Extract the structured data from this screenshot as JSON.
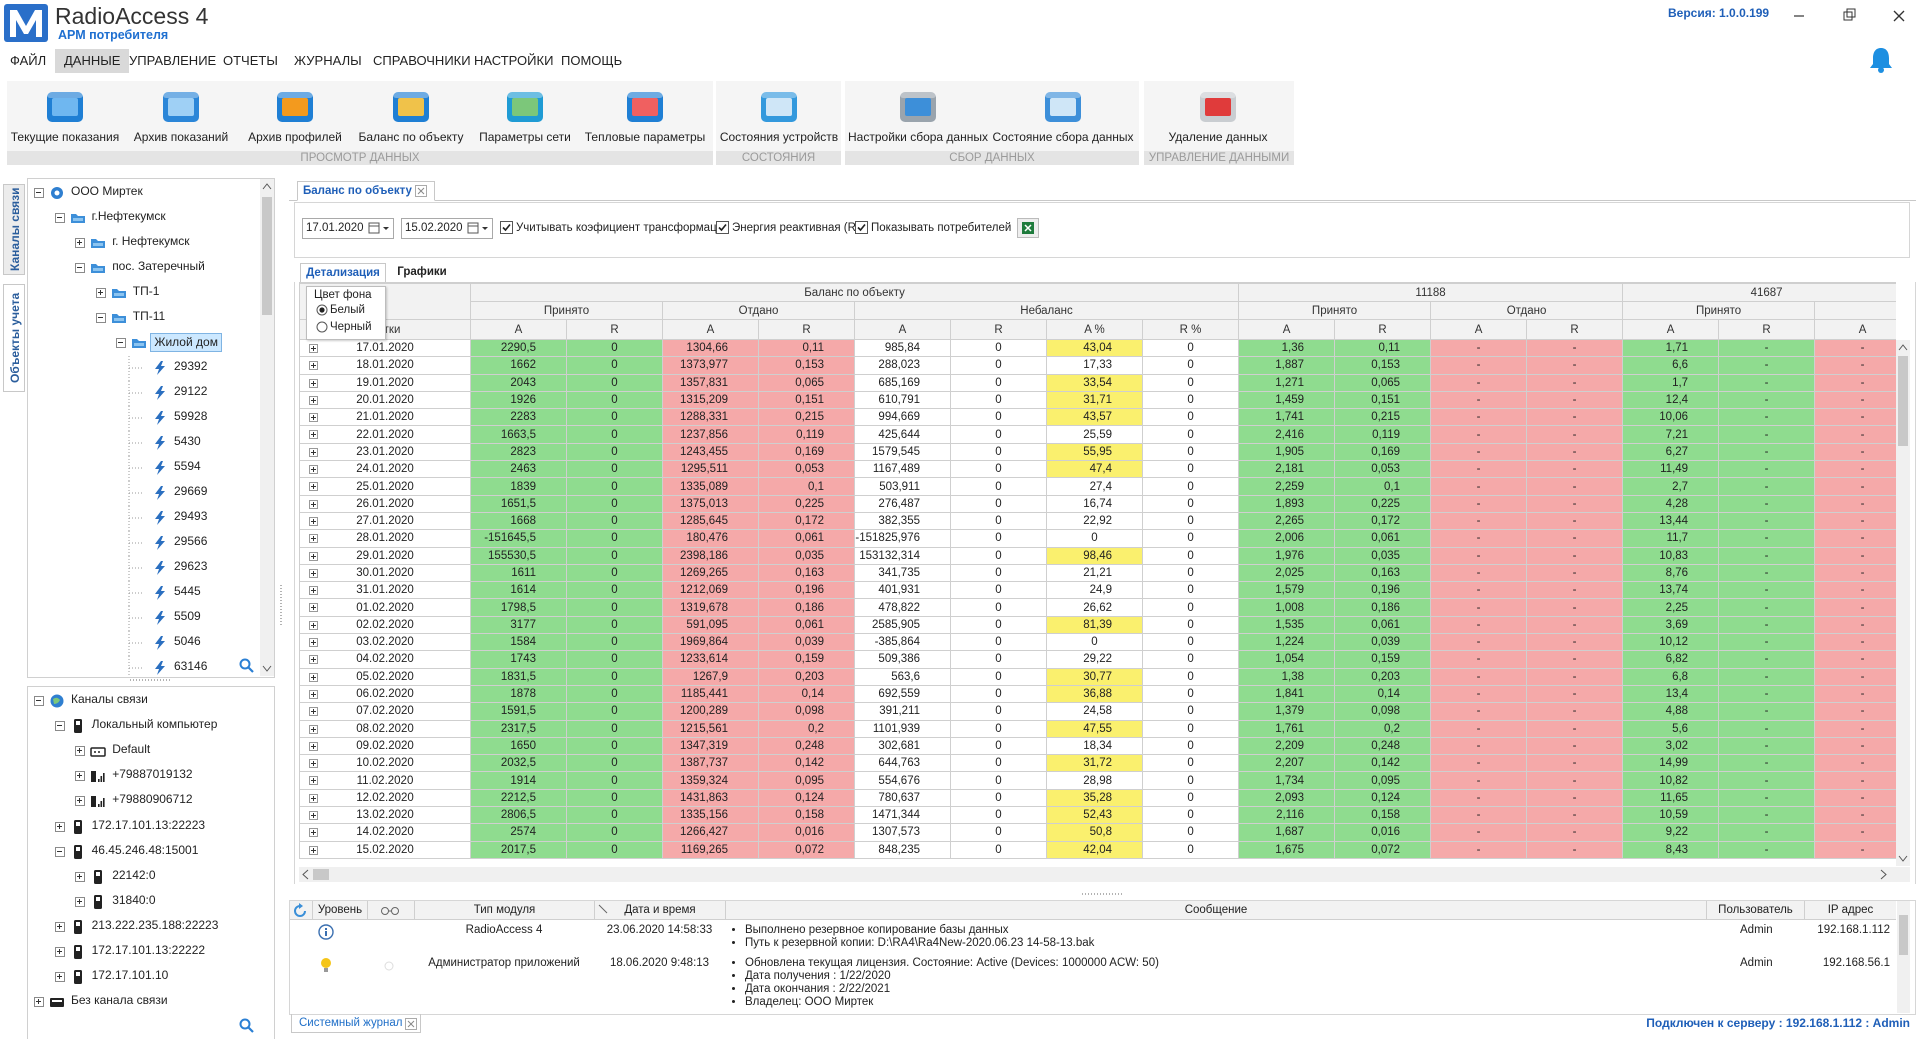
{
  "header": {
    "app_name": "RadioAccess 4",
    "subtitle": "АРМ потребителя",
    "version": "Версия: 1.0.0.199"
  },
  "menu": {
    "items": [
      "ФАЙЛ",
      "ДАННЫЕ",
      "УПРАВЛЕНИЕ",
      "ОТЧЕТЫ",
      "ЖУРНАЛЫ",
      "СПРАВОЧНИКИ",
      "НАСТРОЙКИ",
      "ПОМОЩЬ"
    ],
    "active_index": 1
  },
  "ribbon": {
    "groups": [
      {
        "label": "ПРОСМОТР ДАННЫХ",
        "buttons": [
          "Текущие показания",
          "Архив показаний",
          "Архив профилей",
          "Баланс по объекту",
          "Параметры сети",
          "Тепловые параметры"
        ]
      },
      {
        "label": "СОСТОЯНИЯ",
        "buttons": [
          "Состояния устройств"
        ]
      },
      {
        "label": "СБОР ДАННЫХ",
        "buttons": [
          "Настройки сбора данных",
          "Состояние сбора данных"
        ]
      },
      {
        "label": "УПРАВЛЕНИЕ ДАННЫМИ",
        "buttons": [
          "Удаление данных"
        ]
      }
    ]
  },
  "side_tabs": {
    "items": [
      "Каналы связи",
      "Объекты учета"
    ],
    "active_index": 1
  },
  "objects_tree": [
    {
      "label": "ООО Миртек",
      "level": 0,
      "expander": "minus",
      "icon": "org"
    },
    {
      "label": "г.Нефтекумск",
      "level": 1,
      "expander": "minus",
      "icon": "folder"
    },
    {
      "label": "г. Нефтекумск",
      "level": 2,
      "expander": "plus",
      "icon": "folder"
    },
    {
      "label": "пос. Затеречный",
      "level": 2,
      "expander": "minus",
      "icon": "folder"
    },
    {
      "label": "ТП-1",
      "level": 3,
      "expander": "plus",
      "icon": "folder"
    },
    {
      "label": "ТП-11",
      "level": 3,
      "expander": "minus",
      "icon": "folder"
    },
    {
      "label": "Жилой дом",
      "level": 4,
      "expander": "minus",
      "icon": "folder",
      "selected": true
    },
    {
      "label": "29392",
      "level": 5,
      "icon": "meter"
    },
    {
      "label": "29122",
      "level": 5,
      "icon": "meter"
    },
    {
      "label": "59928",
      "level": 5,
      "icon": "meter"
    },
    {
      "label": "5430",
      "level": 5,
      "icon": "meter"
    },
    {
      "label": "5594",
      "level": 5,
      "icon": "meter"
    },
    {
      "label": "29669",
      "level": 5,
      "icon": "meter"
    },
    {
      "label": "29493",
      "level": 5,
      "icon": "meter"
    },
    {
      "label": "29566",
      "level": 5,
      "icon": "meter"
    },
    {
      "label": "29623",
      "level": 5,
      "icon": "meter"
    },
    {
      "label": "5445",
      "level": 5,
      "icon": "meter"
    },
    {
      "label": "5509",
      "level": 5,
      "icon": "meter"
    },
    {
      "label": "5046",
      "level": 5,
      "icon": "meter"
    },
    {
      "label": "63146",
      "level": 5,
      "icon": "meter"
    }
  ],
  "channels_tree": [
    {
      "label": "Каналы связи",
      "level": 0,
      "expander": "minus",
      "icon": "globe"
    },
    {
      "label": "Локальный компьютер",
      "level": 1,
      "expander": "minus",
      "icon": "device"
    },
    {
      "label": "Default",
      "level": 2,
      "expander": "plus",
      "icon": "modem"
    },
    {
      "label": "+79887019132",
      "level": 2,
      "expander": "plus",
      "icon": "signal"
    },
    {
      "label": "+79880906712",
      "level": 2,
      "expander": "plus",
      "icon": "signal"
    },
    {
      "label": "172.17.101.13:22223",
      "level": 1,
      "expander": "plus",
      "icon": "device"
    },
    {
      "label": "46.45.246.48:15001",
      "level": 1,
      "expander": "minus",
      "icon": "device"
    },
    {
      "label": "22142:0",
      "level": 2,
      "expander": "plus",
      "icon": "device"
    },
    {
      "label": "31840:0",
      "level": 2,
      "expander": "plus",
      "icon": "device"
    },
    {
      "label": "213.222.235.188:22223",
      "level": 1,
      "expander": "plus",
      "icon": "device"
    },
    {
      "label": "172.17.101.13:22222",
      "level": 1,
      "expander": "plus",
      "icon": "device"
    },
    {
      "label": "172.17.101.10",
      "level": 1,
      "expander": "plus",
      "icon": "device"
    },
    {
      "label": "Без канала связи",
      "level": 0,
      "expander": "plus",
      "icon": "nochannel"
    }
  ],
  "document_tab": "Баланс по объекту",
  "filter": {
    "date_from": "17.01.2020",
    "date_to": "15.02.2020",
    "checkboxes": [
      {
        "label": "Учитывать коэфициент трансформации",
        "checked": true
      },
      {
        "label": "Энергия реактивная (R)",
        "checked": true
      },
      {
        "label": "Показывать потребителей",
        "checked": true
      }
    ]
  },
  "sub_tabs": {
    "items": [
      "Детализация",
      "Графики"
    ],
    "active_index": 0
  },
  "background_popup": {
    "title": "Цвет фона",
    "options": [
      "Белый",
      "Черный"
    ],
    "selected_index": 0
  },
  "table": {
    "header_groups": [
      {
        "label": "Баланс по объекту",
        "span": 8
      },
      {
        "label": "11188",
        "span": 4
      },
      {
        "label": "41687",
        "span": 3
      }
    ],
    "header_sub": [
      {
        "label": "Принято",
        "span": 2
      },
      {
        "label": "Отдано",
        "span": 2
      },
      {
        "label": "Небаланс",
        "span": 4
      },
      {
        "label": "Принято",
        "span": 2
      },
      {
        "label": "Отдано",
        "span": 2
      },
      {
        "label": "Принято",
        "span": 2
      }
    ],
    "columns": [
      {
        "label": "Сутки",
        "fill": "#ffffff"
      },
      {
        "label": "A",
        "fill": "#8fdc8f"
      },
      {
        "label": "R",
        "fill": "#8fdc8f"
      },
      {
        "label": "A",
        "fill": "#f5a9a9"
      },
      {
        "label": "R",
        "fill": "#f5a9a9"
      },
      {
        "label": "A",
        "fill": "#ffffff"
      },
      {
        "label": "R",
        "fill": "#ffffff"
      },
      {
        "label": "A %",
        "fill": "#ffffff"
      },
      {
        "label": "R %",
        "fill": "#ffffff"
      },
      {
        "label": "A",
        "fill": "#8fdc8f"
      },
      {
        "label": "R",
        "fill": "#8fdc8f"
      },
      {
        "label": "A",
        "fill": "#f5a9a9"
      },
      {
        "label": "R",
        "fill": "#f5a9a9"
      },
      {
        "label": "A",
        "fill": "#8fdc8f"
      },
      {
        "label": "R",
        "fill": "#8fdc8f"
      },
      {
        "label": "A",
        "fill": "#f5a9a9"
      }
    ],
    "highlight_column": 7,
    "highlight_fill": "#faf06e",
    "rows": [
      {
        "cells": [
          "17.01.2020",
          "2290,5",
          "0",
          "1304,66",
          "0,11",
          "985,84",
          "0",
          "43,04",
          "0",
          "1,36",
          "0,11",
          "-",
          "-",
          "1,71",
          "-",
          "-"
        ],
        "highlight": true
      },
      {
        "cells": [
          "18.01.2020",
          "1662",
          "0",
          "1373,977",
          "0,153",
          "288,023",
          "0",
          "17,33",
          "0",
          "1,887",
          "0,153",
          "-",
          "-",
          "6,6",
          "-",
          "-"
        ],
        "highlight": false
      },
      {
        "cells": [
          "19.01.2020",
          "2043",
          "0",
          "1357,831",
          "0,065",
          "685,169",
          "0",
          "33,54",
          "0",
          "1,271",
          "0,065",
          "-",
          "-",
          "1,7",
          "-",
          "-"
        ],
        "highlight": true
      },
      {
        "cells": [
          "20.01.2020",
          "1926",
          "0",
          "1315,209",
          "0,151",
          "610,791",
          "0",
          "31,71",
          "0",
          "1,459",
          "0,151",
          "-",
          "-",
          "12,4",
          "-",
          "-"
        ],
        "highlight": true
      },
      {
        "cells": [
          "21.01.2020",
          "2283",
          "0",
          "1288,331",
          "0,215",
          "994,669",
          "0",
          "43,57",
          "0",
          "1,741",
          "0,215",
          "-",
          "-",
          "10,06",
          "-",
          "-"
        ],
        "highlight": true
      },
      {
        "cells": [
          "22.01.2020",
          "1663,5",
          "0",
          "1237,856",
          "0,119",
          "425,644",
          "0",
          "25,59",
          "0",
          "2,416",
          "0,119",
          "-",
          "-",
          "7,21",
          "-",
          "-"
        ],
        "highlight": false
      },
      {
        "cells": [
          "23.01.2020",
          "2823",
          "0",
          "1243,455",
          "0,169",
          "1579,545",
          "0",
          "55,95",
          "0",
          "1,905",
          "0,169",
          "-",
          "-",
          "6,27",
          "-",
          "-"
        ],
        "highlight": true
      },
      {
        "cells": [
          "24.01.2020",
          "2463",
          "0",
          "1295,511",
          "0,053",
          "1167,489",
          "0",
          "47,4",
          "0",
          "2,181",
          "0,053",
          "-",
          "-",
          "11,49",
          "-",
          "-"
        ],
        "highlight": true
      },
      {
        "cells": [
          "25.01.2020",
          "1839",
          "0",
          "1335,089",
          "0,1",
          "503,911",
          "0",
          "27,4",
          "0",
          "2,259",
          "0,1",
          "-",
          "-",
          "2,7",
          "-",
          "-"
        ],
        "highlight": false
      },
      {
        "cells": [
          "26.01.2020",
          "1651,5",
          "0",
          "1375,013",
          "0,225",
          "276,487",
          "0",
          "16,74",
          "0",
          "1,893",
          "0,225",
          "-",
          "-",
          "4,28",
          "-",
          "-"
        ],
        "highlight": false
      },
      {
        "cells": [
          "27.01.2020",
          "1668",
          "0",
          "1285,645",
          "0,172",
          "382,355",
          "0",
          "22,92",
          "0",
          "2,265",
          "0,172",
          "-",
          "-",
          "13,44",
          "-",
          "-"
        ],
        "highlight": false
      },
      {
        "cells": [
          "28.01.2020",
          "-151645,5",
          "0",
          "180,476",
          "0,061",
          "-151825,976",
          "0",
          "0",
          "0",
          "2,006",
          "0,061",
          "-",
          "-",
          "11,7",
          "-",
          "-"
        ],
        "highlight": false
      },
      {
        "cells": [
          "29.01.2020",
          "155530,5",
          "0",
          "2398,186",
          "0,035",
          "153132,314",
          "0",
          "98,46",
          "0",
          "1,976",
          "0,035",
          "-",
          "-",
          "10,83",
          "-",
          "-"
        ],
        "highlight": true
      },
      {
        "cells": [
          "30.01.2020",
          "1611",
          "0",
          "1269,265",
          "0,163",
          "341,735",
          "0",
          "21,21",
          "0",
          "2,025",
          "0,163",
          "-",
          "-",
          "8,76",
          "-",
          "-"
        ],
        "highlight": false
      },
      {
        "cells": [
          "31.01.2020",
          "1614",
          "0",
          "1212,069",
          "0,196",
          "401,931",
          "0",
          "24,9",
          "0",
          "1,579",
          "0,196",
          "-",
          "-",
          "13,74",
          "-",
          "-"
        ],
        "highlight": false
      },
      {
        "cells": [
          "01.02.2020",
          "1798,5",
          "0",
          "1319,678",
          "0,186",
          "478,822",
          "0",
          "26,62",
          "0",
          "1,008",
          "0,186",
          "-",
          "-",
          "2,25",
          "-",
          "-"
        ],
        "highlight": false
      },
      {
        "cells": [
          "02.02.2020",
          "3177",
          "0",
          "591,095",
          "0,061",
          "2585,905",
          "0",
          "81,39",
          "0",
          "1,535",
          "0,061",
          "-",
          "-",
          "3,69",
          "-",
          "-"
        ],
        "highlight": true
      },
      {
        "cells": [
          "03.02.2020",
          "1584",
          "0",
          "1969,864",
          "0,039",
          "-385,864",
          "0",
          "0",
          "0",
          "1,224",
          "0,039",
          "-",
          "-",
          "10,12",
          "-",
          "-"
        ],
        "highlight": false
      },
      {
        "cells": [
          "04.02.2020",
          "1743",
          "0",
          "1233,614",
          "0,159",
          "509,386",
          "0",
          "29,22",
          "0",
          "1,054",
          "0,159",
          "-",
          "-",
          "6,82",
          "-",
          "-"
        ],
        "highlight": false
      },
      {
        "cells": [
          "05.02.2020",
          "1831,5",
          "0",
          "1267,9",
          "0,203",
          "563,6",
          "0",
          "30,77",
          "0",
          "1,38",
          "0,203",
          "-",
          "-",
          "6,8",
          "-",
          "-"
        ],
        "highlight": true
      },
      {
        "cells": [
          "06.02.2020",
          "1878",
          "0",
          "1185,441",
          "0,14",
          "692,559",
          "0",
          "36,88",
          "0",
          "1,841",
          "0,14",
          "-",
          "-",
          "13,4",
          "-",
          "-"
        ],
        "highlight": true
      },
      {
        "cells": [
          "07.02.2020",
          "1591,5",
          "0",
          "1200,289",
          "0,098",
          "391,211",
          "0",
          "24,58",
          "0",
          "1,379",
          "0,098",
          "-",
          "-",
          "4,88",
          "-",
          "-"
        ],
        "highlight": false
      },
      {
        "cells": [
          "08.02.2020",
          "2317,5",
          "0",
          "1215,561",
          "0,2",
          "1101,939",
          "0",
          "47,55",
          "0",
          "1,761",
          "0,2",
          "-",
          "-",
          "5,6",
          "-",
          "-"
        ],
        "highlight": true
      },
      {
        "cells": [
          "09.02.2020",
          "1650",
          "0",
          "1347,319",
          "0,248",
          "302,681",
          "0",
          "18,34",
          "0",
          "2,209",
          "0,248",
          "-",
          "-",
          "3,02",
          "-",
          "-"
        ],
        "highlight": false
      },
      {
        "cells": [
          "10.02.2020",
          "2032,5",
          "0",
          "1387,737",
          "0,142",
          "644,763",
          "0",
          "31,72",
          "0",
          "2,207",
          "0,142",
          "-",
          "-",
          "14,99",
          "-",
          "-"
        ],
        "highlight": true
      },
      {
        "cells": [
          "11.02.2020",
          "1914",
          "0",
          "1359,324",
          "0,095",
          "554,676",
          "0",
          "28,98",
          "0",
          "1,734",
          "0,095",
          "-",
          "-",
          "10,82",
          "-",
          "-"
        ],
        "highlight": false
      },
      {
        "cells": [
          "12.02.2020",
          "2212,5",
          "0",
          "1431,863",
          "0,124",
          "780,637",
          "0",
          "35,28",
          "0",
          "2,093",
          "0,124",
          "-",
          "-",
          "11,65",
          "-",
          "-"
        ],
        "highlight": true
      },
      {
        "cells": [
          "13.02.2020",
          "2806,5",
          "0",
          "1335,156",
          "0,158",
          "1471,344",
          "0",
          "52,43",
          "0",
          "2,116",
          "0,158",
          "-",
          "-",
          "10,59",
          "-",
          "-"
        ],
        "highlight": true
      },
      {
        "cells": [
          "14.02.2020",
          "2574",
          "0",
          "1266,427",
          "0,016",
          "1307,573",
          "0",
          "50,8",
          "0",
          "1,687",
          "0,016",
          "-",
          "-",
          "9,22",
          "-",
          "-"
        ],
        "highlight": true
      },
      {
        "cells": [
          "15.02.2020",
          "2017,5",
          "0",
          "1169,265",
          "0,072",
          "848,235",
          "0",
          "42,04",
          "0",
          "1,675",
          "0,072",
          "-",
          "-",
          "8,43",
          "-",
          "-"
        ],
        "highlight": true
      }
    ]
  },
  "log": {
    "columns": [
      "Уровень",
      "Тип модуля",
      "Дата и время",
      "Сообщение",
      "Пользователь",
      "IP адрес"
    ],
    "rows": [
      {
        "level": "info",
        "module": "RadioAccess 4",
        "datetime": "23.06.2020 14:58:33",
        "message": [
          "Выполнено резервное копирование базы данных",
          "Путь к резервной копии: D:\\RA4\\Ra4New-2020.06.23 14-58-13.bak"
        ],
        "user": "Admin",
        "ip": "192.168.1.112"
      },
      {
        "level": "tip",
        "module": "Администратор приложений",
        "datetime": "18.06.2020 9:48:13",
        "message": [
          "Обновлена текущая лицензия. Состояние:  Active (Devices: 1000000 ACW: 50)",
          "Дата получения : 1/22/2020",
          "Дата окончания : 2/22/2021",
          "Владелец: ООО Миртек"
        ],
        "user": "Admin",
        "ip": "192.168.56.1"
      }
    ]
  },
  "bottom_tab": "Системный журнал",
  "status": "Подключен к серверу : 192.168.1.112 : Admin"
}
